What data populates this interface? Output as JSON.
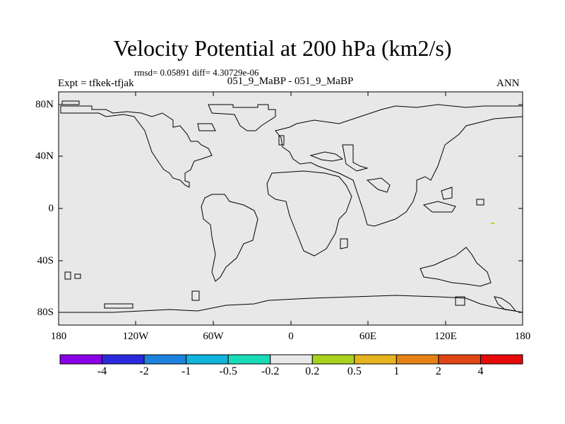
{
  "title": "Velocity Potential at 200 hPa (km2/s)",
  "stats": "rmsd= 0.05891 diff= 4.30729e-06",
  "experiment": "Expt = tfkek-tfjak",
  "subtitle": "051_9_MaBP - 051_9_MaBP",
  "season": "ANN",
  "colors": {
    "map_background": "#e8e8e8",
    "coastline": "#000000",
    "marker": "#c8d800"
  },
  "axes": {
    "y_ticks": [
      "80N",
      "40N",
      "0",
      "40S",
      "80S"
    ],
    "x_ticks": [
      "180",
      "120W",
      "60W",
      "0",
      "60E",
      "120E",
      "180"
    ]
  },
  "colorbar": {
    "colors": [
      "#8a00e6",
      "#2a2adc",
      "#1e82dc",
      "#10b4dc",
      "#18dcb8",
      "#e8e8e8",
      "#a8d21e",
      "#e6b41e",
      "#e68214",
      "#e04614",
      "#e60a0a"
    ],
    "labels": [
      "-4",
      "-2",
      "-1",
      "-0.5",
      "-0.2",
      "0.2",
      "0.5",
      "1",
      "2",
      "4"
    ]
  }
}
